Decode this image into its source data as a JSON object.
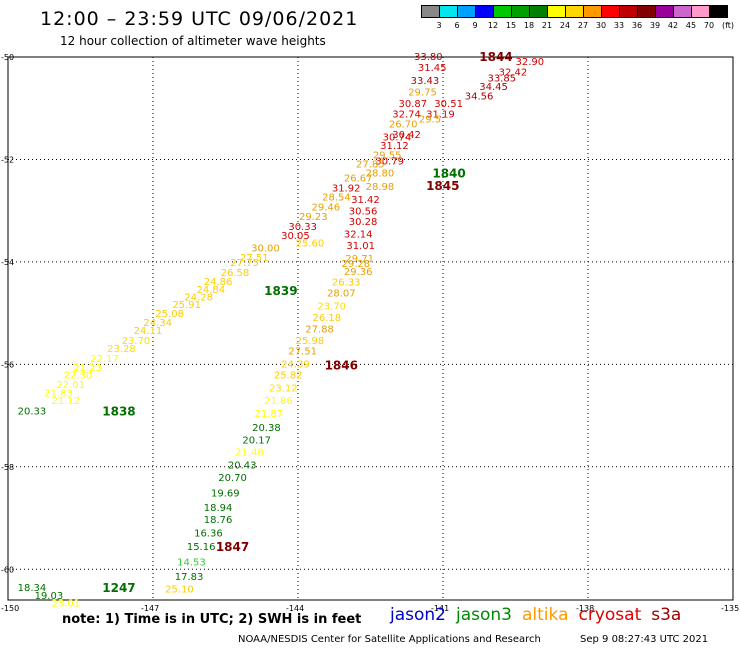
{
  "title": "12:00 – 23:59 UTC 09/06/2021",
  "subtitle": "12 hour collection of altimeter wave heights",
  "legend": {
    "unit": "(ft)",
    "items": [
      {
        "label": "3",
        "color": "#888888"
      },
      {
        "label": "6",
        "color": "#00e5ee"
      },
      {
        "label": "9",
        "color": "#00a0ff"
      },
      {
        "label": "12",
        "color": "#0000ff"
      },
      {
        "label": "15",
        "color": "#00c800"
      },
      {
        "label": "18",
        "color": "#00a000"
      },
      {
        "label": "21",
        "color": "#008000"
      },
      {
        "label": "24",
        "color": "#ffff00"
      },
      {
        "label": "27",
        "color": "#ffd700"
      },
      {
        "label": "30",
        "color": "#ff9900"
      },
      {
        "label": "33",
        "color": "#ff0000"
      },
      {
        "label": "36",
        "color": "#c00000"
      },
      {
        "label": "39",
        "color": "#800000"
      },
      {
        "label": "42",
        "color": "#990099"
      },
      {
        "label": "45",
        "color": "#cc66cc"
      },
      {
        "label": "70",
        "color": "#ff99cc"
      },
      {
        "label": "",
        "color": "#000000"
      }
    ]
  },
  "axes": {
    "y_ticks": [
      "-50",
      "-52",
      "-54",
      "-56",
      "-58",
      "-60"
    ],
    "x_ticks": [
      "-150",
      "-147",
      "-144",
      "-141",
      "-138",
      "-135"
    ]
  },
  "time_labels": [
    {
      "text": "1844",
      "color": "#800000",
      "lon": -140.25,
      "lat": -49.98
    },
    {
      "text": "1840",
      "color": "#007000",
      "lon": -141.22,
      "lat": -52.25
    },
    {
      "text": "1845",
      "color": "#800000",
      "lon": -141.35,
      "lat": -52.5
    },
    {
      "text": "1839",
      "color": "#007000",
      "lon": -144.7,
      "lat": -54.55
    },
    {
      "text": "1846",
      "color": "#800000",
      "lon": -143.45,
      "lat": -56.0
    },
    {
      "text": "1838",
      "color": "#007000",
      "lon": -148.05,
      "lat": -56.9
    },
    {
      "text": "1847",
      "color": "#800000",
      "lon": -145.7,
      "lat": -59.55
    },
    {
      "text": "1247",
      "color": "#007000",
      "lon": -148.05,
      "lat": -60.35
    }
  ],
  "wave_heights": [
    {
      "v": "33.80",
      "c": "#b40000",
      "lon": -141.6,
      "lat": -49.98
    },
    {
      "v": "32.90",
      "c": "#d40000",
      "lon": -139.5,
      "lat": -50.08
    },
    {
      "v": "31.45",
      "c": "#d40000",
      "lon": -141.52,
      "lat": -50.2
    },
    {
      "v": "32.42",
      "c": "#d40000",
      "lon": -139.85,
      "lat": -50.28
    },
    {
      "v": "33.43",
      "c": "#b40000",
      "lon": -141.67,
      "lat": -50.45
    },
    {
      "v": "33.85",
      "c": "#b40000",
      "lon": -140.08,
      "lat": -50.4
    },
    {
      "v": "34.45",
      "c": "#b40000",
      "lon": -140.25,
      "lat": -50.57
    },
    {
      "v": "29.75",
      "c": "#e8a000",
      "lon": -141.72,
      "lat": -50.67
    },
    {
      "v": "34.56",
      "c": "#b40000",
      "lon": -140.55,
      "lat": -50.75
    },
    {
      "v": "30.87",
      "c": "#d40000",
      "lon": -141.92,
      "lat": -50.9
    },
    {
      "v": "30.51",
      "c": "#d40000",
      "lon": -141.18,
      "lat": -50.9
    },
    {
      "v": "32.74",
      "c": "#d40000",
      "lon": -142.05,
      "lat": -51.1
    },
    {
      "v": "31.19",
      "c": "#d40000",
      "lon": -141.35,
      "lat": -51.1
    },
    {
      "v": "29.5",
      "c": "#e8a000",
      "lon": -141.5,
      "lat": -51.2
    },
    {
      "v": "26.70",
      "c": "#e8a000",
      "lon": -142.12,
      "lat": -51.3
    },
    {
      "v": "30.74",
      "c": "#d40000",
      "lon": -142.25,
      "lat": -51.55
    },
    {
      "v": "30.42",
      "c": "#d40000",
      "lon": -142.05,
      "lat": -51.5
    },
    {
      "v": "31.12",
      "c": "#d40000",
      "lon": -142.3,
      "lat": -51.72
    },
    {
      "v": "29.55",
      "c": "#e8a000",
      "lon": -142.45,
      "lat": -51.9
    },
    {
      "v": "30.79",
      "c": "#d40000",
      "lon": -142.4,
      "lat": -52.02
    },
    {
      "v": "27.85",
      "c": "#e8a000",
      "lon": -142.8,
      "lat": -52.08
    },
    {
      "v": "28.80",
      "c": "#e8a000",
      "lon": -142.6,
      "lat": -52.25
    },
    {
      "v": "26.67",
      "c": "#e8a000",
      "lon": -143.05,
      "lat": -52.35
    },
    {
      "v": "31.92",
      "c": "#d40000",
      "lon": -143.3,
      "lat": -52.55
    },
    {
      "v": "28.98",
      "c": "#e8a000",
      "lon": -142.6,
      "lat": -52.52
    },
    {
      "v": "28.54",
      "c": "#e8a000",
      "lon": -143.5,
      "lat": -52.72
    },
    {
      "v": "31.42",
      "c": "#d40000",
      "lon": -142.9,
      "lat": -52.77
    },
    {
      "v": "29.46",
      "c": "#e8a000",
      "lon": -143.72,
      "lat": -52.92
    },
    {
      "v": "30.56",
      "c": "#d40000",
      "lon": -142.95,
      "lat": -53.0
    },
    {
      "v": "29.23",
      "c": "#e8a000",
      "lon": -143.98,
      "lat": -53.1
    },
    {
      "v": "30.28",
      "c": "#d40000",
      "lon": -142.95,
      "lat": -53.2
    },
    {
      "v": "30.33",
      "c": "#d40000",
      "lon": -144.2,
      "lat": -53.3
    },
    {
      "v": "32.14",
      "c": "#d40000",
      "lon": -143.05,
      "lat": -53.45
    },
    {
      "v": "30.05",
      "c": "#d40000",
      "lon": -144.35,
      "lat": -53.47
    },
    {
      "v": "25.60",
      "c": "#ffcc00",
      "lon": -144.05,
      "lat": -53.62
    },
    {
      "v": "31.01",
      "c": "#d40000",
      "lon": -143.0,
      "lat": -53.67
    },
    {
      "v": "30.00",
      "c": "#e8a000",
      "lon": -144.97,
      "lat": -53.72
    },
    {
      "v": "29.71",
      "c": "#e8a000",
      "lon": -143.02,
      "lat": -53.92
    },
    {
      "v": "27.51",
      "c": "#ffcc00",
      "lon": -145.2,
      "lat": -53.9
    },
    {
      "v": "29.28",
      "c": "#e8a000",
      "lon": -143.1,
      "lat": -54.02
    },
    {
      "v": "27.75",
      "c": "#ffcc00",
      "lon": -145.4,
      "lat": -54.0
    },
    {
      "v": "26.58",
      "c": "#ffcc00",
      "lon": -145.6,
      "lat": -54.2
    },
    {
      "v": "29.36",
      "c": "#e8a000",
      "lon": -143.05,
      "lat": -54.18
    },
    {
      "v": "24.86",
      "c": "#ffcc00",
      "lon": -145.95,
      "lat": -54.37
    },
    {
      "v": "26.33",
      "c": "#ffcc00",
      "lon": -143.3,
      "lat": -54.38
    },
    {
      "v": "24.84",
      "c": "#ffcc00",
      "lon": -146.1,
      "lat": -54.53
    },
    {
      "v": "28.07",
      "c": "#e8a000",
      "lon": -143.4,
      "lat": -54.6
    },
    {
      "v": "24.28",
      "c": "#ffcc00",
      "lon": -146.35,
      "lat": -54.68
    },
    {
      "v": "25.91",
      "c": "#ffcc00",
      "lon": -146.6,
      "lat": -54.82
    },
    {
      "v": "23.70",
      "c": "#ffdd00",
      "lon": -143.6,
      "lat": -54.85
    },
    {
      "v": "25.08",
      "c": "#ffcc00",
      "lon": -146.95,
      "lat": -55.0
    },
    {
      "v": "26.18",
      "c": "#ffcc00",
      "lon": -143.7,
      "lat": -55.08
    },
    {
      "v": "24.34",
      "c": "#ffcc00",
      "lon": -147.2,
      "lat": -55.17
    },
    {
      "v": "27.88",
      "c": "#e8a000",
      "lon": -143.85,
      "lat": -55.3
    },
    {
      "v": "24.11",
      "c": "#ffcc00",
      "lon": -147.4,
      "lat": -55.33
    },
    {
      "v": "25.98",
      "c": "#ffcc00",
      "lon": -144.05,
      "lat": -55.52
    },
    {
      "v": "23.70",
      "c": "#ffdd00",
      "lon": -147.65,
      "lat": -55.52
    },
    {
      "v": "23.28",
      "c": "#ffdd00",
      "lon": -147.95,
      "lat": -55.68
    },
    {
      "v": "27.51",
      "c": "#e8a000",
      "lon": -144.2,
      "lat": -55.73
    },
    {
      "v": "22.17",
      "c": "#ffff00",
      "lon": -148.3,
      "lat": -55.88
    },
    {
      "v": "24.39",
      "c": "#ffcc00",
      "lon": -144.35,
      "lat": -55.98
    },
    {
      "v": "21.23",
      "c": "#ffff00",
      "lon": -148.65,
      "lat": -56.05
    },
    {
      "v": "22.30",
      "c": "#ffff00",
      "lon": -148.85,
      "lat": -56.2
    },
    {
      "v": "25.82",
      "c": "#ffcc00",
      "lon": -144.5,
      "lat": -56.2
    },
    {
      "v": "22.01",
      "c": "#ffff00",
      "lon": -149.0,
      "lat": -56.38
    },
    {
      "v": "23.12",
      "c": "#ffdd00",
      "lon": -144.6,
      "lat": -56.45
    },
    {
      "v": "21.83",
      "c": "#ffff00",
      "lon": -149.25,
      "lat": -56.55
    },
    {
      "v": "21.12",
      "c": "#ffff00",
      "lon": -149.1,
      "lat": -56.7
    },
    {
      "v": "21.86",
      "c": "#ffff00",
      "lon": -144.7,
      "lat": -56.7
    },
    {
      "v": "20.33",
      "c": "#007000",
      "lon": -149.8,
      "lat": -56.9
    },
    {
      "v": "21.87",
      "c": "#ffff00",
      "lon": -144.9,
      "lat": -56.95
    },
    {
      "v": "20.38",
      "c": "#007000",
      "lon": -144.95,
      "lat": -57.22
    },
    {
      "v": "20.17",
      "c": "#007000",
      "lon": -145.15,
      "lat": -57.47
    },
    {
      "v": "21.48",
      "c": "#ffff00",
      "lon": -145.3,
      "lat": -57.7
    },
    {
      "v": "20.43",
      "c": "#007000",
      "lon": -145.45,
      "lat": -57.95
    },
    {
      "v": "20.70",
      "c": "#007000",
      "lon": -145.65,
      "lat": -58.2
    },
    {
      "v": "19.69",
      "c": "#007000",
      "lon": -145.8,
      "lat": -58.5
    },
    {
      "v": "18.94",
      "c": "#007000",
      "lon": -145.95,
      "lat": -58.78
    },
    {
      "v": "18.76",
      "c": "#007000",
      "lon": -145.95,
      "lat": -59.02
    },
    {
      "v": "16.36",
      "c": "#007000",
      "lon": -146.15,
      "lat": -59.28
    },
    {
      "v": "15.16",
      "c": "#007000",
      "lon": -146.3,
      "lat": -59.55
    },
    {
      "v": "14.53",
      "c": "#33cc33",
      "lon": -146.5,
      "lat": -59.85
    },
    {
      "v": "17.83",
      "c": "#007000",
      "lon": -146.55,
      "lat": -60.13
    },
    {
      "v": "25.10",
      "c": "#ffcc00",
      "lon": -146.75,
      "lat": -60.38
    },
    {
      "v": "18.34",
      "c": "#007000",
      "lon": -149.8,
      "lat": -60.35
    },
    {
      "v": "19.03",
      "c": "#007000",
      "lon": -149.45,
      "lat": -60.5
    },
    {
      "v": "23.01",
      "c": "#ffff00",
      "lon": -149.1,
      "lat": -60.65
    }
  ],
  "note": "note:  1) Time is in UTC;  2) SWH is in feet",
  "satellites": [
    {
      "name": "jason2",
      "color": "#0000cc"
    },
    {
      "name": "jason3",
      "color": "#008800"
    },
    {
      "name": "altika",
      "color": "#ff9900"
    },
    {
      "name": "cryosat",
      "color": "#dd0000"
    },
    {
      "name": "s3a",
      "color": "#990000"
    }
  ],
  "credit": "NOAA/NESDIS Center for Satellite Applications and Research",
  "timestamp": "Sep  9 08:27:43 UTC 2021"
}
